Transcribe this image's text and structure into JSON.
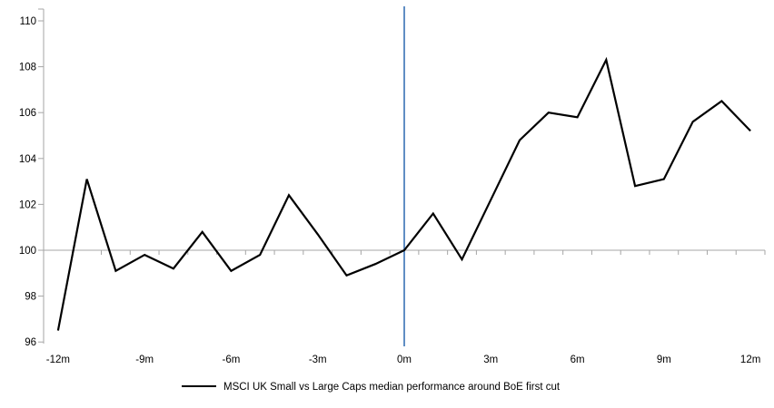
{
  "chart_data": {
    "type": "line",
    "title": "",
    "xlabel": "",
    "ylabel": "",
    "x": [
      -12,
      -11,
      -10,
      -9,
      -8,
      -7,
      -6,
      -5,
      -4,
      -3,
      -2,
      -1,
      0,
      1,
      2,
      3,
      4,
      5,
      6,
      7,
      8,
      9,
      10,
      11,
      12
    ],
    "categories": [
      "-12m",
      "-11m",
      "-10m",
      "-9m",
      "-8m",
      "-7m",
      "-6m",
      "-5m",
      "-4m",
      "-3m",
      "-2m",
      "-1m",
      "0m",
      "1m",
      "2m",
      "3m",
      "4m",
      "5m",
      "6m",
      "7m",
      "8m",
      "9m",
      "10m",
      "11m",
      "12m"
    ],
    "series": [
      {
        "name": "MSCI UK Small vs Large Caps median performance around BoE first cut",
        "color": "#000000",
        "values": [
          96.5,
          103.1,
          99.1,
          99.8,
          99.2,
          100.8,
          99.1,
          99.8,
          102.4,
          100.7,
          98.9,
          99.4,
          100.0,
          101.6,
          99.6,
          102.2,
          104.8,
          106.0,
          105.8,
          108.3,
          102.8,
          103.1,
          105.6,
          106.5,
          105.2
        ]
      }
    ],
    "x_tick_labels": [
      "-12m",
      "-9m",
      "-6m",
      "-3m",
      "0m",
      "3m",
      "6m",
      "9m",
      "12m"
    ],
    "x_tick_months": [
      -12,
      -9,
      -6,
      -3,
      0,
      3,
      6,
      9,
      12
    ],
    "y_ticks": [
      96,
      98,
      100,
      102,
      104,
      106,
      108,
      110
    ],
    "ylim": [
      96,
      110.6
    ],
    "baseline_value": 100,
    "event_line_x": 0,
    "grid": "baseline-only",
    "legend_position": "bottom-center",
    "colors": {
      "series": "#000000",
      "event_line": "#4f81bd",
      "axis": "#a6a6a6",
      "baseline": "#a6a6a6",
      "text": "#000000",
      "background": "#ffffff"
    }
  }
}
